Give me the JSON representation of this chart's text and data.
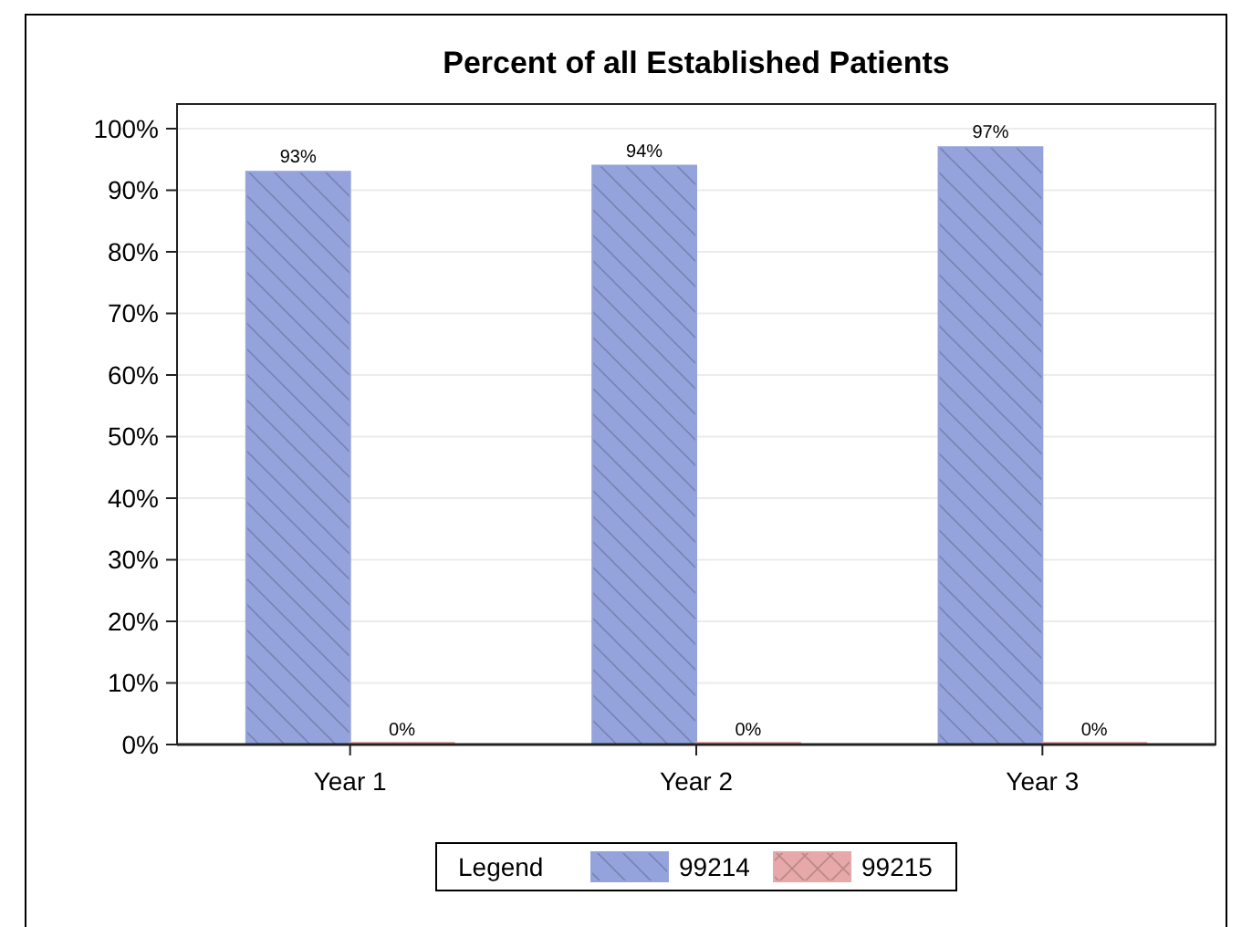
{
  "chart_data": {
    "type": "bar",
    "title": "Percent of all Established Patients",
    "categories": [
      "Year 1",
      "Year 2",
      "Year 3"
    ],
    "series": [
      {
        "name": "99214",
        "color": "#95a3dc",
        "values": [
          93,
          94,
          97
        ],
        "value_labels": [
          "93%",
          "94%",
          "97%"
        ]
      },
      {
        "name": "99215",
        "color": "#e6a8a8",
        "values": [
          0,
          0,
          0
        ],
        "value_labels": [
          "0%",
          "0%",
          "0%"
        ]
      }
    ],
    "ylim": [
      0,
      104
    ],
    "yticks": [
      {
        "value": 0,
        "label": "0%"
      },
      {
        "value": 10,
        "label": "10%"
      },
      {
        "value": 20,
        "label": "20%"
      },
      {
        "value": 30,
        "label": "30%"
      },
      {
        "value": 40,
        "label": "40%"
      },
      {
        "value": 50,
        "label": "50%"
      },
      {
        "value": 60,
        "label": "60%"
      },
      {
        "value": 70,
        "label": "70%"
      },
      {
        "value": 80,
        "label": "80%"
      },
      {
        "value": 90,
        "label": "90%"
      },
      {
        "value": 100,
        "label": "100%"
      }
    ],
    "grid": "y",
    "legend": "bottom",
    "legend_title": "Legend"
  }
}
